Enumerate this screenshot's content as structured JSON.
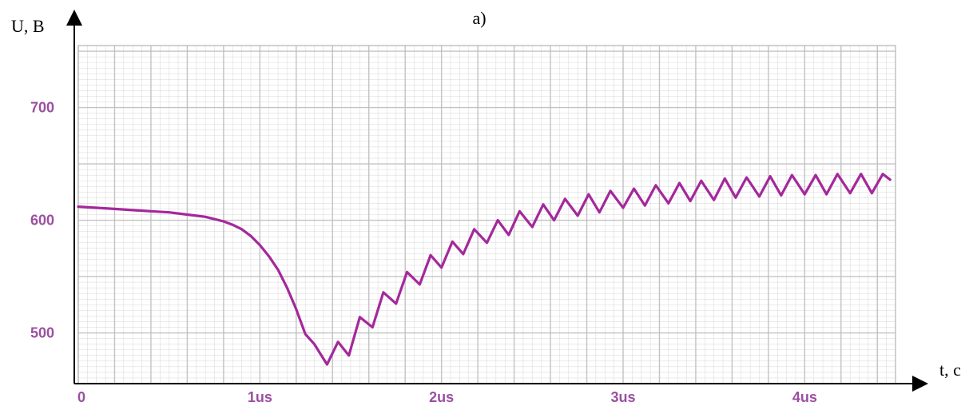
{
  "chart_data": {
    "type": "line",
    "title": "a)",
    "ylabel": "U, B",
    "xlabel": "t, c",
    "xlim": [
      0,
      4.5
    ],
    "ylim": [
      455,
      755
    ],
    "x_ticks": [
      {
        "value": 0,
        "label": "0"
      },
      {
        "value": 1,
        "label": "1us"
      },
      {
        "value": 2,
        "label": "2us"
      },
      {
        "value": 3,
        "label": "3us"
      },
      {
        "value": 4,
        "label": "4us"
      }
    ],
    "y_ticks": [
      {
        "value": 500,
        "label": "500"
      },
      {
        "value": 600,
        "label": "600"
      },
      {
        "value": 700,
        "label": "700"
      }
    ],
    "grid": true,
    "colors": {
      "line": "#a4289b",
      "tick_label": "#9b4fa0",
      "grid": "#bdbdbd",
      "axis": "#000000"
    },
    "series": [
      {
        "x": [
          0,
          0.1,
          0.2,
          0.3,
          0.4,
          0.5,
          0.6,
          0.7,
          0.8,
          0.85,
          0.9,
          0.95,
          1.0,
          1.05,
          1.1,
          1.15,
          1.2,
          1.25,
          1.3,
          1.37,
          1.43,
          1.49,
          1.55,
          1.62,
          1.68,
          1.75,
          1.81,
          1.88,
          1.94,
          2.0,
          2.06,
          2.12,
          2.18,
          2.25,
          2.31,
          2.37,
          2.43,
          2.5,
          2.56,
          2.62,
          2.68,
          2.75,
          2.81,
          2.87,
          2.93,
          3.0,
          3.06,
          3.12,
          3.18,
          3.25,
          3.31,
          3.37,
          3.43,
          3.5,
          3.56,
          3.62,
          3.68,
          3.75,
          3.81,
          3.87,
          3.93,
          4.0,
          4.06,
          4.12,
          4.18,
          4.25,
          4.31,
          4.37,
          4.43,
          4.47
        ],
        "y": [
          612,
          611,
          610,
          609,
          608,
          607,
          605,
          603,
          599,
          596,
          592,
          586,
          578,
          568,
          556,
          540,
          521,
          499,
          490,
          472,
          492,
          480,
          514,
          505,
          536,
          526,
          554,
          543,
          569,
          558,
          581,
          570,
          592,
          580,
          600,
          587,
          608,
          594,
          614,
          600,
          619,
          604,
          623,
          607,
          626,
          611,
          628,
          613,
          631,
          615,
          633,
          617,
          635,
          618,
          637,
          620,
          638,
          621,
          639,
          622,
          640,
          623,
          640,
          623,
          641,
          624,
          641,
          624,
          641,
          636
        ]
      }
    ]
  }
}
